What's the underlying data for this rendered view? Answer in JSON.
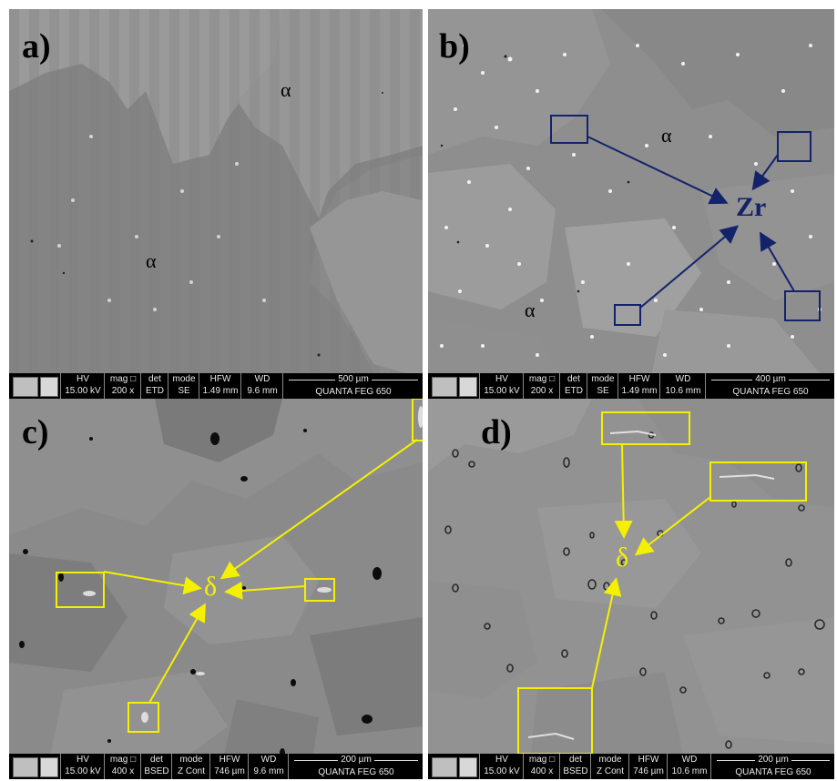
{
  "panels": [
    {
      "label": "a)",
      "phase_labels": [
        "α",
        "α"
      ],
      "infobar": {
        "hv": {
          "k": "HV",
          "v": "15.00 kV"
        },
        "mag": {
          "k": "mag □",
          "v": "200 x"
        },
        "det": {
          "k": "det",
          "v": "ETD"
        },
        "mode": {
          "k": "mode",
          "v": "SE"
        },
        "hfw": {
          "k": "HFW",
          "v": "1.49 mm"
        },
        "wd": {
          "k": "WD",
          "v": "9.6 mm"
        },
        "scale": "500 µm",
        "instrument": "QUANTA FEG 650"
      }
    },
    {
      "label": "b)",
      "phase_labels": [
        "α",
        "α"
      ],
      "pointer_label": "Zr",
      "infobar": {
        "hv": {
          "k": "HV",
          "v": "15.00 kV"
        },
        "mag": {
          "k": "mag □",
          "v": "200 x"
        },
        "det": {
          "k": "det",
          "v": "ETD"
        },
        "mode": {
          "k": "mode",
          "v": "SE"
        },
        "hfw": {
          "k": "HFW",
          "v": "1.49 mm"
        },
        "wd": {
          "k": "WD",
          "v": "10.6 mm"
        },
        "scale": "400 µm",
        "instrument": "QUANTA FEG 650"
      }
    },
    {
      "label": "c)",
      "pointer_label": "δ",
      "infobar": {
        "hv": {
          "k": "HV",
          "v": "15.00 kV"
        },
        "mag": {
          "k": "mag □",
          "v": "400 x"
        },
        "det": {
          "k": "det",
          "v": "BSED"
        },
        "mode": {
          "k": "mode",
          "v": "Z Cont"
        },
        "hfw": {
          "k": "HFW",
          "v": "746 µm"
        },
        "wd": {
          "k": "WD",
          "v": "9.6 mm"
        },
        "scale": "200 µm",
        "instrument": "QUANTA FEG 650"
      }
    },
    {
      "label": "d)",
      "pointer_label": "δ",
      "infobar": {
        "hv": {
          "k": "HV",
          "v": "15.00 kV"
        },
        "mag": {
          "k": "mag □",
          "v": "400 x"
        },
        "det": {
          "k": "det",
          "v": "BSED"
        },
        "mode": {
          "k": "mode",
          "v": "Z Cont"
        },
        "hfw": {
          "k": "HFW",
          "v": "746 µm"
        },
        "wd": {
          "k": "WD",
          "v": "10.6 mm"
        },
        "scale": "200 µm",
        "instrument": "QUANTA FEG 650"
      }
    }
  ],
  "colors": {
    "navy_annotation": "#13236b",
    "yellow_annotation": "#f5f000",
    "infobar_bg": "#000000"
  }
}
